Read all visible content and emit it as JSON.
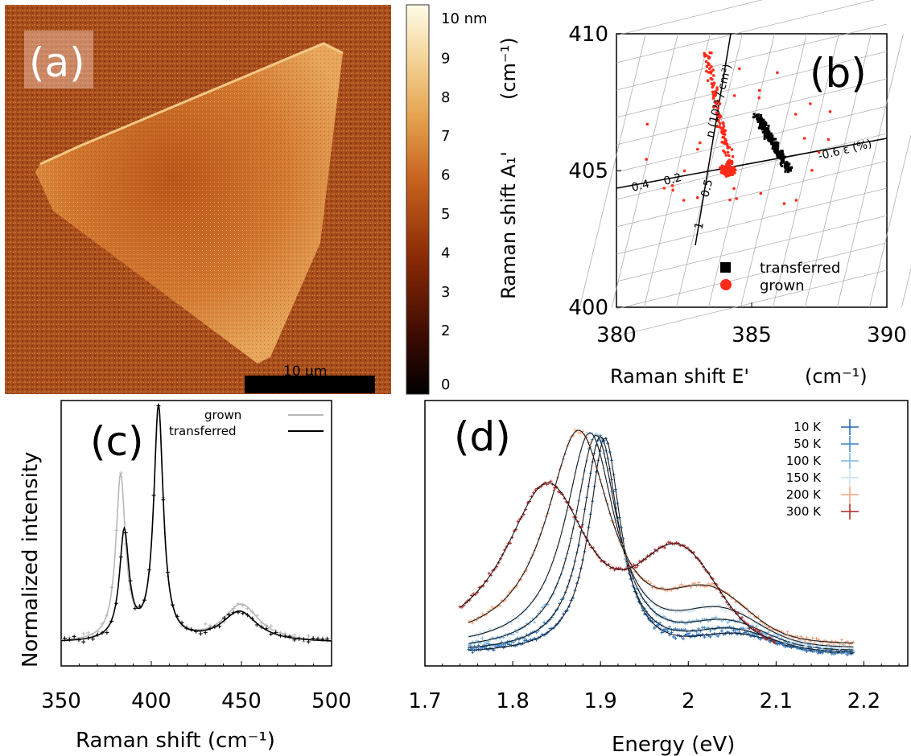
{
  "figure": {
    "panel_labels": [
      "(a)",
      "(b)",
      "(c)",
      "(d)"
    ]
  },
  "chart_data": [
    {
      "panel": "(a)",
      "type": "heatmap",
      "colorbar": {
        "unit_label": "10 nm",
        "ticks": [
          "10 nm",
          "9",
          "8",
          "7",
          "6",
          "5",
          "4",
          "3",
          "2",
          "0"
        ],
        "range": [
          0,
          10
        ],
        "colors": [
          "#000000",
          "#3d0b02",
          "#8a2a05",
          "#c8621e",
          "#e6a553",
          "#f5d79c",
          "#fffbe8"
        ]
      },
      "scalebar_label": "10 μm",
      "description_colors": {
        "background": "#a44a18",
        "flake": "#e29a4a",
        "flake_center": "#bb5a20"
      }
    },
    {
      "panel": "(b)",
      "type": "scatter",
      "xlabel": "Raman shift E'",
      "xunit": "(cm⁻¹)",
      "ylabel": "Raman shift A₁'",
      "yunit": "(cm⁻¹)",
      "xlim": [
        380,
        390
      ],
      "ylim": [
        400,
        410
      ],
      "xticks": [
        "380",
        "385",
        "390"
      ],
      "yticks": [
        "400",
        "405",
        "410"
      ],
      "grid_annotations": {
        "strain_axis_label": "-0.6 ε (%)",
        "strain_ticks": [
          "0.4",
          "0.2"
        ],
        "doping_axis_label": "n (10¹³ / cm²)",
        "doping_ticks": [
          "0.5",
          "1"
        ]
      },
      "series": [
        {
          "name": "transferred",
          "color": "#000000",
          "marker": "square",
          "center": [
            386.0,
            405.4
          ],
          "cluster": "black"
        },
        {
          "name": "grown",
          "color": "#ff2a1a",
          "marker": "circle",
          "center": [
            384.1,
            405.0
          ],
          "cluster": "red"
        }
      ]
    },
    {
      "panel": "(c)",
      "type": "line",
      "xlabel": "Raman shift (cm⁻¹)",
      "ylabel": "Normalized intensity",
      "xlim": [
        350,
        500
      ],
      "xticks": [
        "350",
        "400",
        "450",
        "500"
      ],
      "series": [
        {
          "name": "grown",
          "color": "#b8b8b8",
          "peaks": [
            [
              383,
              0.7
            ],
            [
              404,
              1.0
            ],
            [
              450,
              0.16
            ]
          ]
        },
        {
          "name": "transferred",
          "color": "#000000",
          "peaks": [
            [
              385,
              0.46
            ],
            [
              404,
              1.0
            ],
            [
              449,
              0.13
            ]
          ]
        }
      ]
    },
    {
      "panel": "(d)",
      "type": "line",
      "xlabel": "Energy (eV)",
      "xlim": [
        1.7,
        2.25
      ],
      "xticks": [
        "1.7",
        "1.8",
        "1.9",
        "2",
        "2.1",
        "2.2"
      ],
      "series": [
        {
          "name": "10 K",
          "color": "#1f63b5",
          "peak": 1.905
        },
        {
          "name": "50 K",
          "color": "#3b83c9",
          "peak": 1.9
        },
        {
          "name": "100 K",
          "color": "#7db7e2",
          "peak": 1.895
        },
        {
          "name": "150 K",
          "color": "#c6e1f2",
          "peak": 1.888
        },
        {
          "name": "200 K",
          "color": "#f2a07a",
          "peak": 1.875
        },
        {
          "name": "300 K",
          "color": "#b22222",
          "peak": 1.84
        }
      ]
    }
  ]
}
